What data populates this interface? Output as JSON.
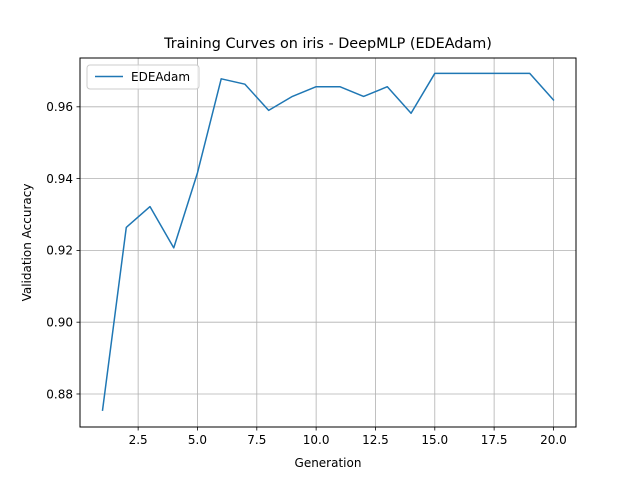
{
  "chart_data": {
    "type": "line",
    "title": "Training Curves on iris - DeepMLP (EDEAdam)",
    "xlabel": "Generation",
    "ylabel": "Validation Accuracy",
    "xlim": [
      0.05,
      20.95
    ],
    "ylim": [
      0.8708,
      0.9736
    ],
    "xticks": [
      2.5,
      5.0,
      7.5,
      10.0,
      12.5,
      15.0,
      17.5,
      20.0
    ],
    "xtick_labels": [
      "2.5",
      "5.0",
      "7.5",
      "10.0",
      "12.5",
      "15.0",
      "17.5",
      "20.0"
    ],
    "yticks": [
      0.88,
      0.9,
      0.92,
      0.94,
      0.96
    ],
    "ytick_labels": [
      "0.88",
      "0.90",
      "0.92",
      "0.94",
      "0.96"
    ],
    "grid": true,
    "legend": "top-left",
    "series": [
      {
        "name": "EDEAdam",
        "color": "#1f77b4",
        "x": [
          1,
          2,
          3,
          4,
          5,
          6,
          7,
          8,
          9,
          10,
          11,
          12,
          13,
          14,
          15,
          16,
          17,
          18,
          19,
          20
        ],
        "values": [
          0.8755,
          0.9264,
          0.9322,
          0.9207,
          0.9416,
          0.9678,
          0.9663,
          0.959,
          0.9629,
          0.9656,
          0.9656,
          0.9629,
          0.9656,
          0.9582,
          0.9693,
          0.9693,
          0.9693,
          0.9693,
          0.9693,
          0.9619
        ]
      }
    ]
  }
}
